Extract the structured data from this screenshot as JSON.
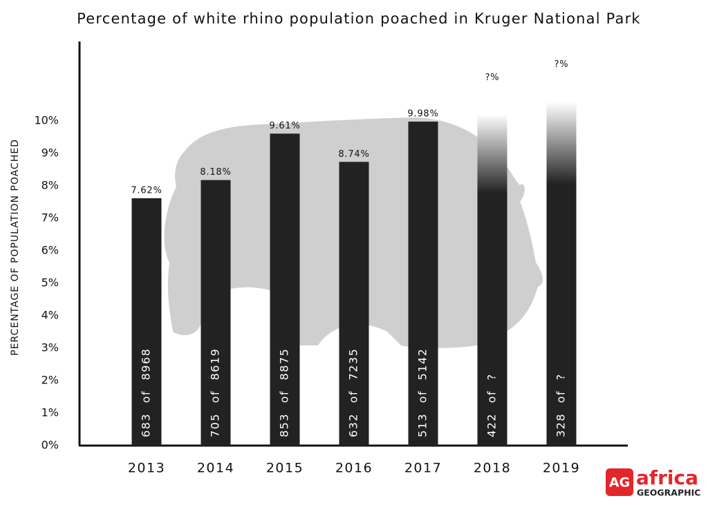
{
  "chart_data": {
    "type": "bar",
    "title": "Percentage of white rhino population poached in Kruger National Park",
    "y_label": "PERCENTAGE OF POPULATION POACHED",
    "categories": [
      "2013",
      "2014",
      "2015",
      "2016",
      "2017",
      "2018",
      "2019"
    ],
    "values": [
      7.62,
      8.18,
      9.61,
      8.74,
      9.98,
      11.1,
      11.5
    ],
    "value_labels": [
      "7.62%",
      "8.18%",
      "9.61%",
      "8.74%",
      "9.98%",
      "?%",
      "?%"
    ],
    "inner_labels": [
      "683 of 8968",
      "705 of 8619",
      "853 of 8875",
      "632 of 7235",
      "513 of 5142",
      "422 of ?",
      "328 of ?"
    ],
    "fade_top": [
      false,
      false,
      false,
      false,
      false,
      true,
      true
    ],
    "color": "#222222",
    "ylim": [
      0,
      12.45
    ],
    "yticks": [
      {
        "value": 0,
        "label": "0%"
      },
      {
        "value": 1,
        "label": "1%"
      },
      {
        "value": 2,
        "label": "2%"
      },
      {
        "value": 3,
        "label": "3%"
      },
      {
        "value": 4,
        "label": "4%"
      },
      {
        "value": 5,
        "label": "5%"
      },
      {
        "value": 6,
        "label": "6%"
      },
      {
        "value": 7,
        "label": "7%"
      },
      {
        "value": 8,
        "label": "8%"
      },
      {
        "value": 9,
        "label": "9%"
      },
      {
        "value": 10,
        "label": "10%"
      }
    ],
    "grid": false,
    "logo": {
      "badge": "AG",
      "name": "africa",
      "sub": "GEOGRAPHIC"
    }
  }
}
